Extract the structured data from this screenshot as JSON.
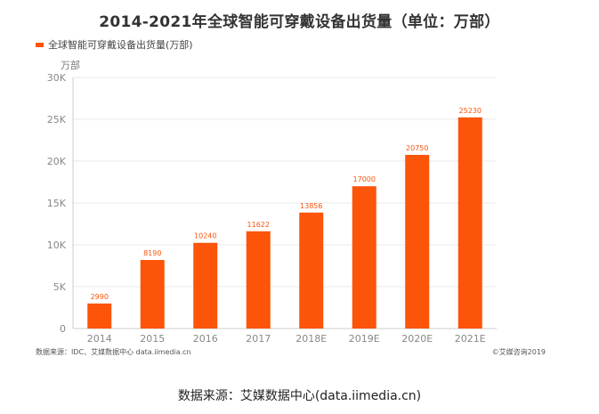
{
  "title": "2014-2021年全球智能可穿戴设备出货量（单位：万部）",
  "legend_label": "全球智能可穿戴设备出货量(万部)",
  "unit_label": "万部",
  "source_note": "数据来源：IDC、艾媒数据中心 data.iimedia.cn",
  "copyright": "©艾媒咨询2019",
  "caption": "数据来源：艾媒数据中心(data.iimedia.cn)",
  "colors": {
    "bar": "#fc5409",
    "grid": "#e8e8e8",
    "axis_text": "#888888"
  },
  "chart_data": {
    "type": "bar",
    "title": "2014-2021年全球智能可穿戴设备出货量（单位：万部）",
    "ylabel": "万部",
    "ylim": [
      0,
      30000
    ],
    "yticks": [
      0,
      5000,
      10000,
      15000,
      20000,
      25000,
      30000
    ],
    "ytick_labels": [
      "0",
      "5K",
      "10K",
      "15K",
      "20K",
      "25K",
      "30K"
    ],
    "categories": [
      "2014",
      "2015",
      "2016",
      "2017",
      "2018E",
      "2019E",
      "2020E",
      "2021E"
    ],
    "series": [
      {
        "name": "全球智能可穿戴设备出货量(万部)",
        "values": [
          2990,
          8190,
          10240,
          11622,
          13856,
          17000,
          20750,
          25230
        ]
      }
    ],
    "grid": true,
    "legend_position": "top-left"
  }
}
